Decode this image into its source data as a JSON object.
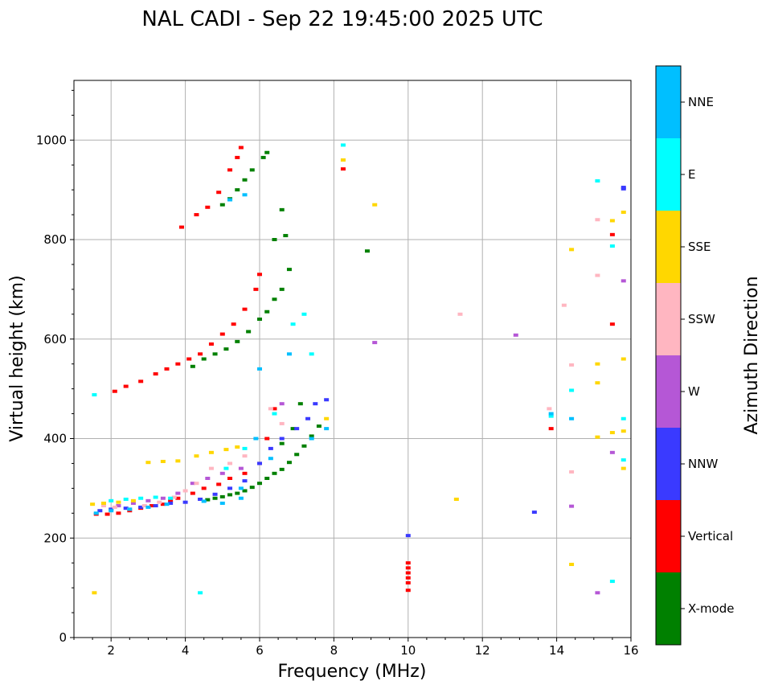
{
  "chart_data": {
    "type": "scatter",
    "title": "NAL CADI - Sep 22 19:45:00 2025 UTC",
    "xlabel": "Frequency (MHz)",
    "ylabel": "Virtual height (km)",
    "xlim": [
      1,
      16
    ],
    "ylim": [
      0,
      1120
    ],
    "x_ticks": [
      2,
      4,
      6,
      8,
      10,
      12,
      14,
      16
    ],
    "y_ticks": [
      0,
      200,
      400,
      600,
      800,
      1000
    ],
    "grid": true,
    "colorbar": {
      "title": "Azimuth Direction",
      "categories": [
        {
          "name": "X-mode",
          "color": "#008000"
        },
        {
          "name": "Vertical",
          "color": "#ff0000"
        },
        {
          "name": "NNW",
          "color": "#3a3aff"
        },
        {
          "name": "W",
          "color": "#b557d6"
        },
        {
          "name": "SSW",
          "color": "#ffb6c1"
        },
        {
          "name": "SSE",
          "color": "#ffd700"
        },
        {
          "name": "E",
          "color": "#00ffff"
        },
        {
          "name": "NNE",
          "color": "#00bfff"
        }
      ]
    },
    "series": [
      {
        "name": "X-mode",
        "points": [
          [
            4.6,
            277
          ],
          [
            4.8,
            280
          ],
          [
            5.0,
            283
          ],
          [
            5.2,
            287
          ],
          [
            5.4,
            290
          ],
          [
            5.6,
            295
          ],
          [
            5.8,
            302
          ],
          [
            6.0,
            310
          ],
          [
            6.2,
            320
          ],
          [
            6.4,
            330
          ],
          [
            6.6,
            338
          ],
          [
            6.8,
            352
          ],
          [
            7.0,
            368
          ],
          [
            7.2,
            385
          ],
          [
            7.4,
            405
          ],
          [
            7.6,
            425
          ],
          [
            7.1,
            470
          ],
          [
            6.6,
            390
          ],
          [
            6.9,
            420
          ],
          [
            4.2,
            545
          ],
          [
            4.5,
            560
          ],
          [
            4.8,
            570
          ],
          [
            5.1,
            580
          ],
          [
            5.4,
            595
          ],
          [
            5.7,
            615
          ],
          [
            6.0,
            640
          ],
          [
            6.2,
            655
          ],
          [
            6.4,
            680
          ],
          [
            6.6,
            700
          ],
          [
            6.8,
            740
          ],
          [
            6.4,
            800
          ],
          [
            6.7,
            808
          ],
          [
            6.6,
            860
          ],
          [
            5.0,
            870
          ],
          [
            5.2,
            882
          ],
          [
            5.4,
            900
          ],
          [
            5.6,
            920
          ],
          [
            5.8,
            940
          ],
          [
            6.1,
            965
          ],
          [
            6.2,
            975
          ],
          [
            8.9,
            777
          ]
        ]
      },
      {
        "name": "Vertical",
        "points": [
          [
            1.6,
            248
          ],
          [
            1.9,
            248
          ],
          [
            2.2,
            250
          ],
          [
            2.5,
            255
          ],
          [
            2.8,
            260
          ],
          [
            3.1,
            265
          ],
          [
            3.4,
            268
          ],
          [
            3.6,
            275
          ],
          [
            3.8,
            280
          ],
          [
            4.2,
            290
          ],
          [
            4.5,
            300
          ],
          [
            4.9,
            308
          ],
          [
            5.2,
            320
          ],
          [
            5.6,
            330
          ],
          [
            6.0,
            350
          ],
          [
            6.2,
            400
          ],
          [
            6.4,
            460
          ],
          [
            2.1,
            495
          ],
          [
            2.4,
            505
          ],
          [
            2.8,
            515
          ],
          [
            3.2,
            530
          ],
          [
            3.5,
            540
          ],
          [
            3.8,
            550
          ],
          [
            4.1,
            560
          ],
          [
            4.4,
            570
          ],
          [
            4.7,
            590
          ],
          [
            5.0,
            610
          ],
          [
            5.3,
            630
          ],
          [
            5.6,
            660
          ],
          [
            5.9,
            700
          ],
          [
            6.0,
            730
          ],
          [
            3.9,
            825
          ],
          [
            4.3,
            850
          ],
          [
            4.6,
            865
          ],
          [
            4.9,
            895
          ],
          [
            5.2,
            940
          ],
          [
            5.4,
            965
          ],
          [
            5.5,
            985
          ],
          [
            8.25,
            942
          ],
          [
            10.0,
            150
          ],
          [
            10.0,
            140
          ],
          [
            10.0,
            130
          ],
          [
            10.0,
            120
          ],
          [
            10.0,
            110
          ],
          [
            10.0,
            95
          ],
          [
            13.85,
            420
          ],
          [
            15.5,
            630
          ],
          [
            15.5,
            810
          ]
        ]
      },
      {
        "name": "NNW",
        "points": [
          [
            1.7,
            255
          ],
          [
            2.0,
            258
          ],
          [
            2.4,
            260
          ],
          [
            2.8,
            262
          ],
          [
            3.2,
            265
          ],
          [
            3.6,
            270
          ],
          [
            4.0,
            272
          ],
          [
            4.4,
            278
          ],
          [
            4.8,
            288
          ],
          [
            5.2,
            300
          ],
          [
            5.6,
            315
          ],
          [
            6.0,
            350
          ],
          [
            6.3,
            380
          ],
          [
            6.6,
            400
          ],
          [
            7.0,
            420
          ],
          [
            7.3,
            440
          ],
          [
            7.5,
            470
          ],
          [
            7.8,
            478
          ],
          [
            10.0,
            205
          ],
          [
            13.4,
            252
          ],
          [
            15.8,
            905
          ],
          [
            15.8,
            902
          ]
        ]
      },
      {
        "name": "W",
        "points": [
          [
            2.2,
            265
          ],
          [
            2.6,
            270
          ],
          [
            3.0,
            275
          ],
          [
            3.4,
            280
          ],
          [
            3.8,
            290
          ],
          [
            4.2,
            310
          ],
          [
            4.6,
            320
          ],
          [
            5.0,
            330
          ],
          [
            5.5,
            340
          ],
          [
            6.6,
            470
          ],
          [
            9.1,
            593
          ],
          [
            12.9,
            608
          ],
          [
            14.4,
            264
          ],
          [
            15.1,
            90
          ],
          [
            15.5,
            372
          ],
          [
            15.8,
            717
          ]
        ]
      },
      {
        "name": "SSW",
        "points": [
          [
            1.8,
            265
          ],
          [
            2.1,
            262
          ],
          [
            2.5,
            258
          ],
          [
            2.9,
            265
          ],
          [
            3.3,
            272
          ],
          [
            3.7,
            282
          ],
          [
            4.0,
            295
          ],
          [
            4.3,
            310
          ],
          [
            4.7,
            340
          ],
          [
            5.2,
            350
          ],
          [
            5.6,
            365
          ],
          [
            6.3,
            460
          ],
          [
            6.6,
            430
          ],
          [
            11.4,
            650
          ],
          [
            14.2,
            668
          ],
          [
            13.8,
            460
          ],
          [
            14.4,
            548
          ],
          [
            14.4,
            333
          ],
          [
            15.1,
            840
          ],
          [
            15.1,
            728
          ]
        ]
      },
      {
        "name": "SSE",
        "points": [
          [
            1.5,
            268
          ],
          [
            1.8,
            270
          ],
          [
            2.2,
            272
          ],
          [
            2.6,
            275
          ],
          [
            3.0,
            352
          ],
          [
            3.4,
            354
          ],
          [
            3.8,
            355
          ],
          [
            4.3,
            365
          ],
          [
            4.7,
            372
          ],
          [
            5.1,
            378
          ],
          [
            5.4,
            383
          ],
          [
            7.8,
            440
          ],
          [
            8.25,
            960
          ],
          [
            9.1,
            870
          ],
          [
            11.3,
            278
          ],
          [
            14.4,
            147
          ],
          [
            14.4,
            780
          ],
          [
            15.1,
            550
          ],
          [
            15.1,
            512
          ],
          [
            15.1,
            403
          ],
          [
            15.5,
            412
          ],
          [
            15.5,
            838
          ],
          [
            15.8,
            855
          ],
          [
            15.8,
            560
          ],
          [
            15.8,
            415
          ],
          [
            15.8,
            340
          ],
          [
            1.55,
            90
          ]
        ]
      },
      {
        "name": "E",
        "points": [
          [
            1.55,
            488
          ],
          [
            2.0,
            275
          ],
          [
            2.4,
            278
          ],
          [
            2.8,
            280
          ],
          [
            3.2,
            282
          ],
          [
            3.6,
            280
          ],
          [
            4.4,
            90
          ],
          [
            5.1,
            340
          ],
          [
            5.6,
            380
          ],
          [
            6.4,
            450
          ],
          [
            6.9,
            630
          ],
          [
            7.2,
            650
          ],
          [
            7.4,
            570
          ],
          [
            8.25,
            990
          ],
          [
            13.85,
            445
          ],
          [
            14.4,
            497
          ],
          [
            15.1,
            918
          ],
          [
            15.5,
            787
          ],
          [
            15.5,
            113
          ],
          [
            15.8,
            440
          ],
          [
            15.8,
            357
          ]
        ]
      },
      {
        "name": "NNE",
        "points": [
          [
            1.6,
            250
          ],
          [
            2.0,
            255
          ],
          [
            2.5,
            258
          ],
          [
            3.0,
            262
          ],
          [
            3.5,
            268
          ],
          [
            4.5,
            274
          ],
          [
            5.0,
            270
          ],
          [
            5.5,
            280
          ],
          [
            5.5,
            300
          ],
          [
            5.9,
            400
          ],
          [
            6.0,
            540
          ],
          [
            6.3,
            360
          ],
          [
            6.8,
            570
          ],
          [
            7.4,
            400
          ],
          [
            7.8,
            420
          ],
          [
            5.2,
            880
          ],
          [
            5.6,
            890
          ],
          [
            13.85,
            450
          ],
          [
            14.4,
            440
          ]
        ]
      }
    ]
  }
}
